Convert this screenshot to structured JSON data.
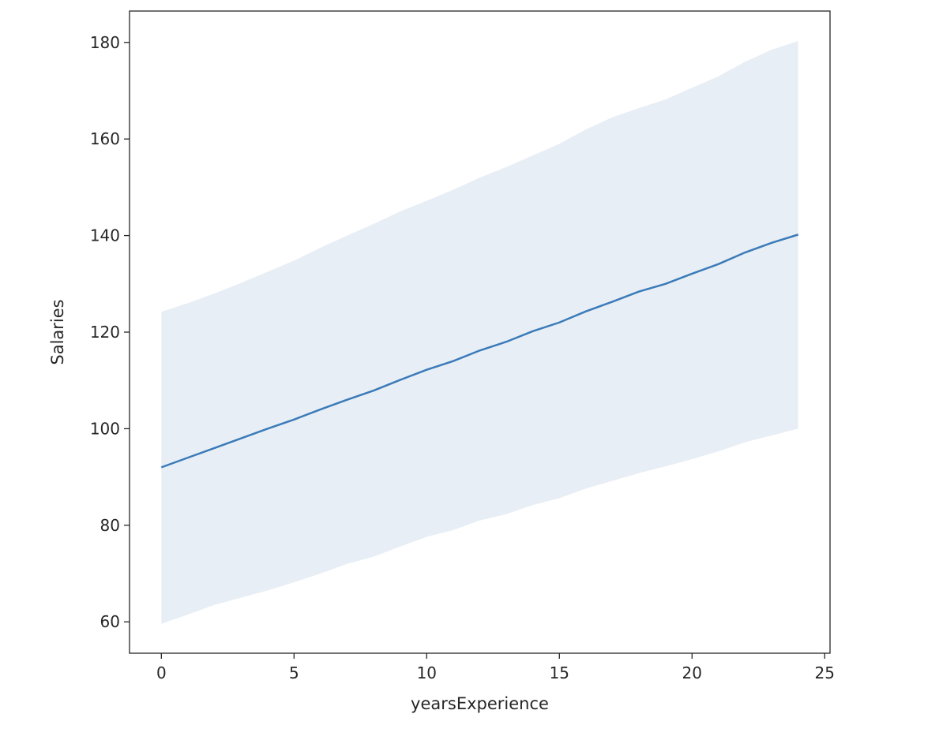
{
  "chart_data": {
    "type": "line",
    "xlabel": "yearsExperience",
    "ylabel": "Salaries",
    "xlim": [
      -1.2,
      25.2
    ],
    "ylim": [
      53.5,
      186.5
    ],
    "xticks": [
      0,
      5,
      10,
      15,
      20,
      25
    ],
    "yticks": [
      60,
      80,
      100,
      120,
      140,
      160,
      180
    ],
    "grid": false,
    "colors": {
      "line": "#3a7bb9",
      "band": "#e8eef5",
      "frame": "#262626"
    },
    "x": [
      0,
      1,
      2,
      3,
      4,
      5,
      6,
      7,
      8,
      9,
      10,
      11,
      12,
      13,
      14,
      15,
      16,
      17,
      18,
      19,
      20,
      21,
      22,
      23,
      24
    ],
    "series": [
      {
        "values": [
          92,
          94,
          96,
          98,
          100,
          101.9,
          104,
          106,
          107.9,
          110.1,
          112.2,
          114,
          116.2,
          118,
          120.2,
          122,
          124.3,
          126.3,
          128.4,
          130,
          132.1,
          134.1,
          136.5,
          138.5,
          140.2
        ]
      }
    ],
    "confidence_band": {
      "lower": [
        59.6,
        61.5,
        63.5,
        65,
        66.5,
        68.2,
        70,
        72,
        73.5,
        75.6,
        77.6,
        79,
        81,
        82.3,
        84.2,
        85.6,
        87.6,
        89.2,
        90.8,
        92.2,
        93.7,
        95.3,
        97.2,
        98.6,
        100
      ],
      "upper": [
        124.2,
        126,
        128,
        130.2,
        132.5,
        134.8,
        137.5,
        140,
        142.4,
        145,
        147.2,
        149.5,
        152,
        154.2,
        156.6,
        159,
        162,
        164.5,
        166.4,
        168.2,
        170.6,
        173,
        176,
        178.5,
        180.3
      ]
    }
  }
}
